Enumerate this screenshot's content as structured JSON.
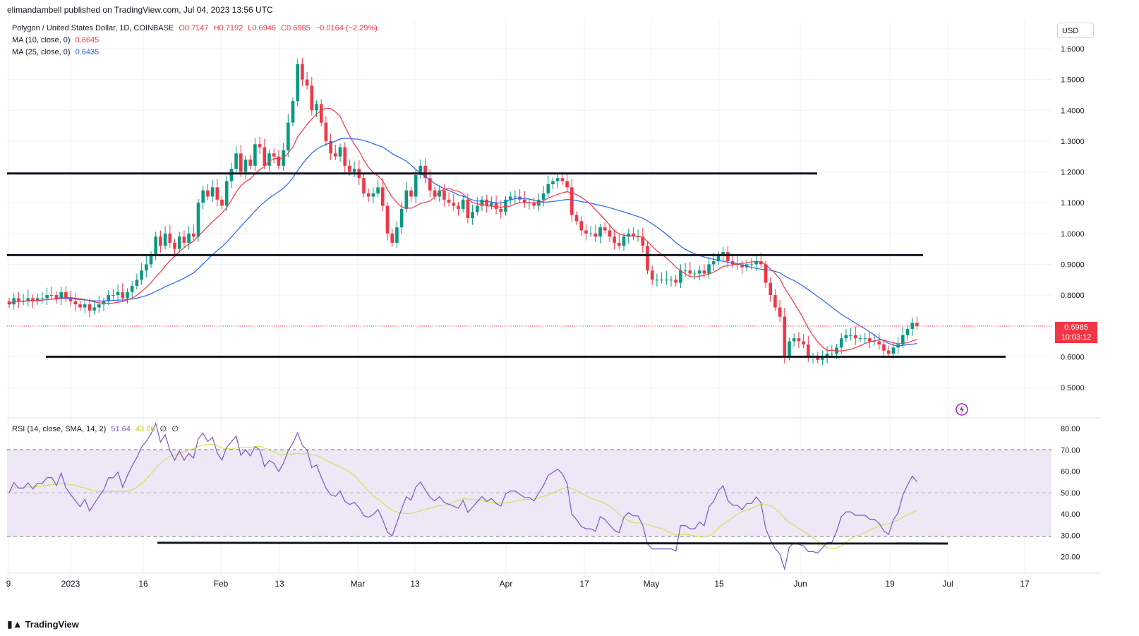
{
  "header": {
    "published": "elimandambell published on TradingView.com, Jul 04, 2023 13:56 UTC"
  },
  "legend": {
    "symbol": "Polygon / United States Dollar, 1D, COINBASE",
    "o": "O0.7147",
    "h": "H0.7192",
    "l": "L0.6946",
    "c": "C0.6985",
    "chg": "−0.0164 (−2.29%)",
    "ma10_label": "MA (10, close, 0)",
    "ma10_value": "0.6645",
    "ma25_label": "MA (25, close, 0)",
    "ma25_value": "0.6435",
    "rsi_label": "RSI (14, close, SMA, 14, 2)",
    "rsi_value": "51.64",
    "rsi_sma": "43.86",
    "rsi_extra1": "∅",
    "rsi_extra2": "∅"
  },
  "currency": "USD",
  "last_price": "0.6985",
  "countdown": "10:03:12",
  "footer": {
    "brand": "TradingView"
  },
  "colors": {
    "up": "#089981",
    "down": "#f23645",
    "ma10": "#f23645",
    "ma25": "#2962ff",
    "rsi": "#7e57c2",
    "rsi_sma": "#d4e157",
    "rsi_band": "#ede7f6",
    "level_line": "#131722"
  },
  "chart_data": [
    {
      "type": "candlestick",
      "title": "Polygon / United States Dollar, 1D, COINBASE",
      "x_tick_labels": [
        "9",
        "2023",
        "16",
        "Feb",
        "13",
        "Mar",
        "13",
        "Apr",
        "17",
        "May",
        "15",
        "Jun",
        "19",
        "Jul",
        "17"
      ],
      "y_tick_labels": [
        "1.6000",
        "1.5000",
        "1.4000",
        "1.3000",
        "1.2000",
        "1.1000",
        "1.0000",
        "0.9000",
        "0.8000",
        "0.7000",
        "0.6000",
        "0.5000"
      ],
      "ylim": [
        0.45,
        1.67
      ],
      "close_approx": [
        0.77,
        0.79,
        0.78,
        0.78,
        0.79,
        0.78,
        0.79,
        0.79,
        0.8,
        0.8,
        0.79,
        0.81,
        0.79,
        0.78,
        0.77,
        0.76,
        0.77,
        0.75,
        0.76,
        0.77,
        0.78,
        0.8,
        0.8,
        0.81,
        0.79,
        0.81,
        0.83,
        0.85,
        0.88,
        0.9,
        0.93,
        0.99,
        0.96,
        1.0,
        0.97,
        0.95,
        0.99,
        0.97,
        1.0,
        0.99,
        1.1,
        1.14,
        1.12,
        1.15,
        1.11,
        1.09,
        1.17,
        1.21,
        1.26,
        1.2,
        1.24,
        1.22,
        1.29,
        1.28,
        1.22,
        1.26,
        1.25,
        1.22,
        1.27,
        1.36,
        1.43,
        1.55,
        1.5,
        1.48,
        1.4,
        1.42,
        1.36,
        1.3,
        1.26,
        1.25,
        1.28,
        1.22,
        1.2,
        1.21,
        1.18,
        1.13,
        1.12,
        1.13,
        1.15,
        1.09,
        1.0,
        0.97,
        1.02,
        1.08,
        1.14,
        1.12,
        1.19,
        1.22,
        1.18,
        1.14,
        1.12,
        1.14,
        1.11,
        1.1,
        1.09,
        1.08,
        1.11,
        1.05,
        1.07,
        1.09,
        1.11,
        1.09,
        1.1,
        1.08,
        1.07,
        1.11,
        1.12,
        1.12,
        1.11,
        1.1,
        1.1,
        1.09,
        1.11,
        1.13,
        1.16,
        1.17,
        1.18,
        1.17,
        1.15,
        1.06,
        1.04,
        1.01,
        1.0,
        1.0,
        0.99,
        1.02,
        1.01,
        0.99,
        0.97,
        0.96,
        0.99,
        1.0,
        0.99,
        0.99,
        0.96,
        0.88,
        0.85,
        0.85,
        0.85,
        0.85,
        0.85,
        0.84,
        0.88,
        0.88,
        0.87,
        0.87,
        0.88,
        0.87,
        0.9,
        0.91,
        0.93,
        0.94,
        0.91,
        0.9,
        0.9,
        0.89,
        0.9,
        0.9,
        0.91,
        0.9,
        0.84,
        0.8,
        0.76,
        0.73,
        0.6,
        0.65,
        0.66,
        0.65,
        0.64,
        0.6,
        0.6,
        0.59,
        0.6,
        0.61,
        0.61,
        0.63,
        0.66,
        0.67,
        0.67,
        0.66,
        0.66,
        0.66,
        0.65,
        0.65,
        0.64,
        0.62,
        0.61,
        0.63,
        0.64,
        0.67,
        0.69,
        0.71,
        0.7
      ],
      "series": [
        {
          "name": "MA (10, close, 0)",
          "last": 0.6645
        },
        {
          "name": "MA (25, close, 0)",
          "last": 0.6435
        }
      ],
      "horizontal_levels": [
        1.195,
        0.93,
        0.6
      ]
    },
    {
      "type": "line",
      "title": "RSI (14, close, SMA, 14, 2)",
      "y_tick_labels": [
        "80.00",
        "70.00",
        "60.00",
        "50.00",
        "40.00",
        "30.00",
        "20.00"
      ],
      "ylim": [
        15,
        82
      ],
      "band": [
        30,
        70
      ],
      "midline": 50,
      "last_rsi": 51.64,
      "last_rsi_sma": 43.86,
      "support_level": 26
    }
  ]
}
